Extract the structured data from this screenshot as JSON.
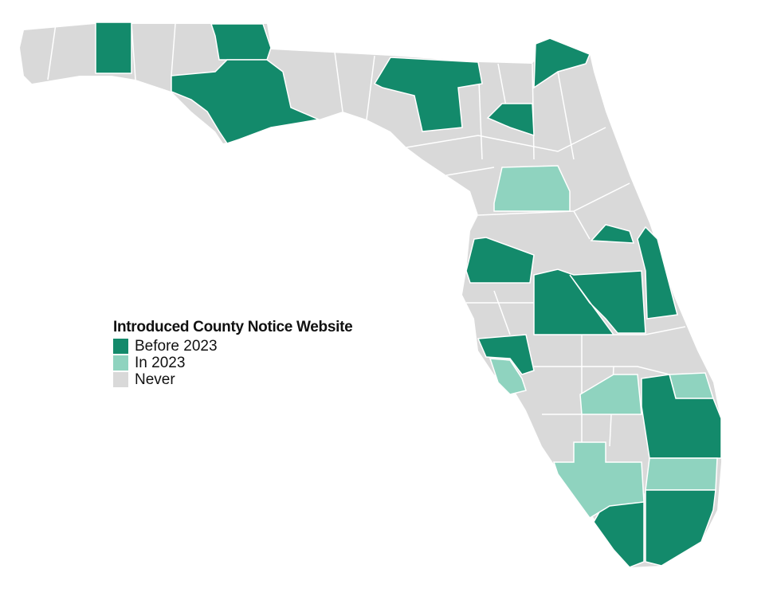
{
  "legend": {
    "title": "Introduced County Notice Website",
    "items": [
      {
        "label": "Before 2023",
        "status": "before",
        "color": "#138a6b"
      },
      {
        "label": "In 2023",
        "status": "in2023",
        "color": "#8fd3bf"
      },
      {
        "label": "Never",
        "status": "never",
        "color": "#d9d9d9"
      }
    ]
  },
  "colors": {
    "before": "#138a6b",
    "in2023": "#8fd3bf",
    "never": "#d9d9d9",
    "border": "#ffffff"
  },
  "map": {
    "region": "Florida counties",
    "counties": [
      {
        "status": "before"
      },
      {
        "status": "before"
      },
      {
        "status": "before"
      },
      {
        "status": "before"
      },
      {
        "status": "before"
      },
      {
        "status": "before"
      },
      {
        "status": "in2023"
      },
      {
        "status": "before"
      },
      {
        "status": "before"
      },
      {
        "status": "before"
      },
      {
        "status": "before"
      },
      {
        "status": "before"
      },
      {
        "status": "in2023"
      },
      {
        "status": "in2023"
      },
      {
        "status": "before"
      },
      {
        "status": "in2023"
      },
      {
        "status": "before"
      },
      {
        "status": "before"
      },
      {
        "status": "in2023"
      },
      {
        "status": "in2023"
      }
    ]
  }
}
